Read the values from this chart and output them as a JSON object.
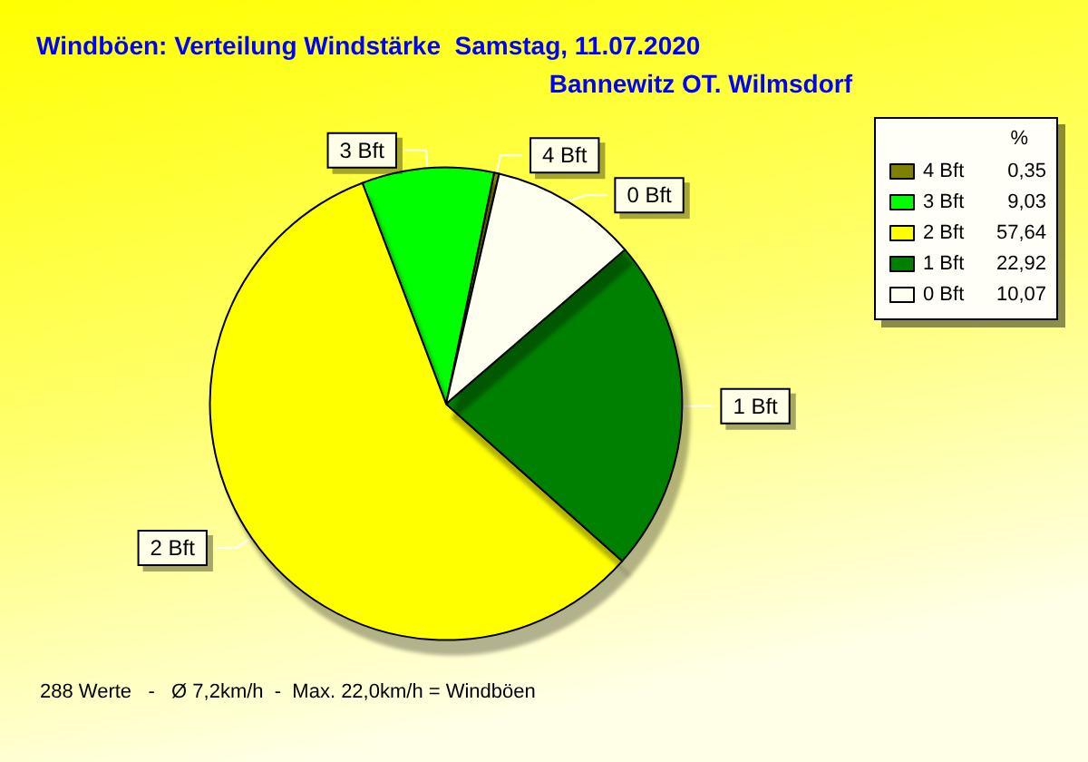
{
  "chart_data": {
    "type": "pie",
    "title": "Windböen: Verteilung Windstärke  Samstag, 11.07.2020",
    "subtitle": "Bannewitz OT. Wilmsdorf",
    "legend_title": "%",
    "categories": [
      "4 Bft",
      "3 Bft",
      "2 Bft",
      "1 Bft",
      "0 Bft"
    ],
    "values": [
      0.35,
      9.03,
      57.64,
      22.92,
      10.07
    ],
    "value_labels": [
      "0,35",
      "9,03",
      "57,64",
      "22,92",
      "10,07"
    ],
    "colors": [
      "#808000",
      "#00ff00",
      "#ffff00",
      "#008000",
      "#fffff0"
    ],
    "legend": "top right",
    "annotations": [
      "288 Werte   -   Ø 7,2km/h  -  Max. 22,0km/h = Windböen"
    ]
  }
}
